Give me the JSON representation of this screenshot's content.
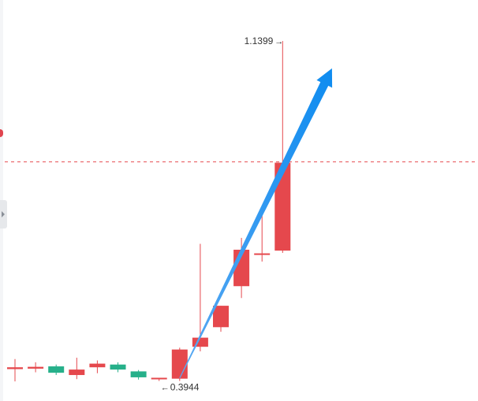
{
  "chart_data": {
    "type": "candlestick",
    "colors": {
      "up": "#e5484d",
      "down": "#26b08a",
      "dashed_line": "#e5484d",
      "arrow": "#1e90ff",
      "label": "#333333"
    },
    "ylim": [
      0.35,
      1.23
    ],
    "candles": [
      {
        "open": 0.42,
        "close": 0.424,
        "high": 0.442,
        "low": 0.393
      },
      {
        "open": 0.421,
        "close": 0.425,
        "high": 0.435,
        "low": 0.413
      },
      {
        "open": 0.426,
        "close": 0.412,
        "high": 0.43,
        "low": 0.407
      },
      {
        "open": 0.407,
        "close": 0.419,
        "high": 0.445,
        "low": 0.398
      },
      {
        "open": 0.424,
        "close": 0.432,
        "high": 0.439,
        "low": 0.411
      },
      {
        "open": 0.43,
        "close": 0.419,
        "high": 0.435,
        "low": 0.413
      },
      {
        "open": 0.415,
        "close": 0.402,
        "high": 0.418,
        "low": 0.397
      },
      {
        "open": 0.401,
        "close": 0.401,
        "high": 0.401,
        "low": 0.394
      },
      {
        "open": 0.399,
        "close": 0.463,
        "high": 0.467,
        "low": 0.394
      },
      {
        "open": 0.469,
        "close": 0.489,
        "high": 0.695,
        "low": 0.459
      },
      {
        "open": 0.512,
        "close": 0.559,
        "high": 0.559,
        "low": 0.502
      },
      {
        "open": 0.602,
        "close": 0.682,
        "high": 0.708,
        "low": 0.576
      },
      {
        "open": 0.674,
        "close": 0.674,
        "high": 0.766,
        "low": 0.656
      },
      {
        "open": 0.68,
        "close": 0.873,
        "high": 1.1399,
        "low": 0.675
      }
    ],
    "dashed_line_value": 0.875,
    "annotations": {
      "high_label": "1.1399",
      "low_label": "0.3944",
      "high_candle_index": 13,
      "low_candle_index": 7
    },
    "trend_arrow": {
      "from": {
        "candle_index": 8,
        "value": 0.4
      },
      "to": {
        "candle_index": 15.4,
        "value": 1.08
      }
    }
  }
}
